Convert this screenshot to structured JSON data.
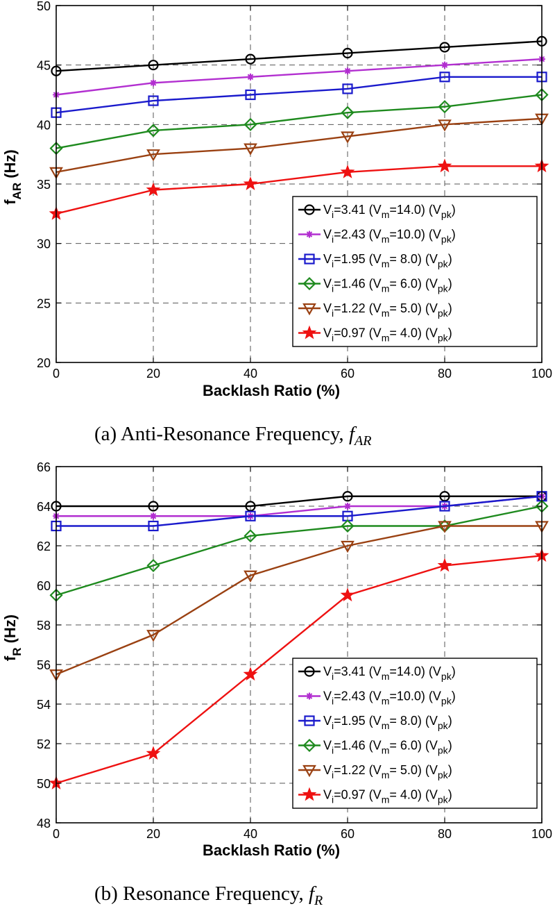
{
  "chart_data": [
    {
      "type": "line",
      "caption": "(a) Anti-Resonance Frequency,",
      "caption_symbol": "f",
      "caption_sub": "AR",
      "xlabel": "Backlash Ratio (%)",
      "ylabel": "f",
      "ylabel_sub": "AR",
      "ylabel_unit": " (Hz)",
      "xlim": [
        0,
        100
      ],
      "ylim": [
        20,
        50
      ],
      "xticks": [
        0,
        20,
        40,
        60,
        80,
        100
      ],
      "yticks": [
        20,
        25,
        30,
        35,
        40,
        45,
        50
      ],
      "grid": true,
      "legend_position": "lower-right",
      "x": [
        0,
        20,
        40,
        60,
        80,
        100
      ],
      "series": [
        {
          "name": "Vi=3.41 (Vm=14.0) (Vpk)",
          "vi": "3.41",
          "vm": "14.0",
          "unit": "pk",
          "color": "#000000",
          "marker": "circle",
          "values": [
            44.5,
            45.0,
            45.5,
            46.0,
            46.5,
            47.0
          ]
        },
        {
          "name": "Vi=2.43 (Vm=10.0) (Vpk)",
          "vi": "2.43",
          "vm": "10.0",
          "unit": "pk",
          "color": "#b22fd0",
          "marker": "asterisk",
          "values": [
            42.5,
            43.5,
            44.0,
            44.5,
            45.0,
            45.5
          ]
        },
        {
          "name": "Vi=1.95 (Vm= 8.0) (Vpk)",
          "vi": "1.95",
          "vm": " 8.0",
          "unit": "pk",
          "color": "#1a1acc",
          "marker": "square",
          "values": [
            41.0,
            42.0,
            42.5,
            43.0,
            44.0,
            44.0
          ]
        },
        {
          "name": "Vi=1.46 (Vm= 6.0) (Vpk)",
          "vi": "1.46",
          "vm": " 6.0",
          "unit": "pk",
          "color": "#1e8a1e",
          "marker": "diamond",
          "values": [
            38.0,
            39.5,
            40.0,
            41.0,
            41.5,
            42.5
          ]
        },
        {
          "name": "Vi=1.22 (Vm= 5.0) (Vpk)",
          "vi": "1.22",
          "vm": " 5.0",
          "unit": "pk",
          "color": "#9a4112",
          "marker": "triangle-down",
          "values": [
            36.0,
            37.5,
            38.0,
            39.0,
            40.0,
            40.5
          ]
        },
        {
          "name": "Vi=0.97 (Vm= 4.0) (Vpk)",
          "vi": "0.97",
          "vm": " 4.0",
          "unit": "pk",
          "color": "#ee1111",
          "marker": "star",
          "values": [
            32.5,
            34.5,
            35.0,
            36.0,
            36.5,
            36.5
          ]
        }
      ]
    },
    {
      "type": "line",
      "caption": "(b) Resonance Frequency,",
      "caption_symbol": "f",
      "caption_sub": "R",
      "xlabel": "Backlash Ratio (%)",
      "ylabel": "f",
      "ylabel_sub": "R",
      "ylabel_unit": " (Hz)",
      "xlim": [
        0,
        100
      ],
      "ylim": [
        48,
        66
      ],
      "xticks": [
        0,
        20,
        40,
        60,
        80,
        100
      ],
      "yticks": [
        48,
        50,
        52,
        54,
        56,
        58,
        60,
        62,
        64,
        66
      ],
      "grid": true,
      "legend_position": "lower-right",
      "x": [
        0,
        20,
        40,
        60,
        80,
        100
      ],
      "series": [
        {
          "name": "Vi=3.41 (Vm=14.0) (Vpk)",
          "vi": "3.41",
          "vm": "14.0",
          "unit": "pk",
          "color": "#000000",
          "marker": "circle",
          "values": [
            64.0,
            64.0,
            64.0,
            64.5,
            64.5,
            64.5
          ]
        },
        {
          "name": "Vi=2.43 (Vm=10.0) (Vpk)",
          "vi": "2.43",
          "vm": "10.0",
          "unit": "pk",
          "color": "#b22fd0",
          "marker": "asterisk",
          "values": [
            63.5,
            63.5,
            63.5,
            64.0,
            64.0,
            64.5
          ]
        },
        {
          "name": "Vi=1.95 (Vm= 8.0) (Vpk)",
          "vi": "1.95",
          "vm": " 8.0",
          "unit": "pk",
          "color": "#1a1acc",
          "marker": "square",
          "values": [
            63.0,
            63.0,
            63.5,
            63.5,
            64.0,
            64.5
          ]
        },
        {
          "name": "Vi=1.46 (Vm= 6.0) (Vpk)",
          "vi": "1.46",
          "vm": " 6.0",
          "unit": "pk",
          "color": "#1e8a1e",
          "marker": "diamond",
          "values": [
            59.5,
            61.0,
            62.5,
            63.0,
            63.0,
            64.0
          ]
        },
        {
          "name": "Vi=1.22 (Vm= 5.0) (Vpk)",
          "vi": "1.22",
          "vm": " 5.0",
          "unit": "pk",
          "color": "#9a4112",
          "marker": "triangle-down",
          "values": [
            55.5,
            57.5,
            60.5,
            62.0,
            63.0,
            63.0
          ]
        },
        {
          "name": "Vi=0.97  (Vm= 4.0) (Vpk)",
          "vi": "0.97",
          "vm": " 4.0",
          "unit": "pk",
          "color": "#ee1111",
          "marker": "star",
          "values": [
            50.0,
            51.5,
            55.5,
            59.5,
            61.0,
            61.5
          ]
        }
      ]
    }
  ]
}
